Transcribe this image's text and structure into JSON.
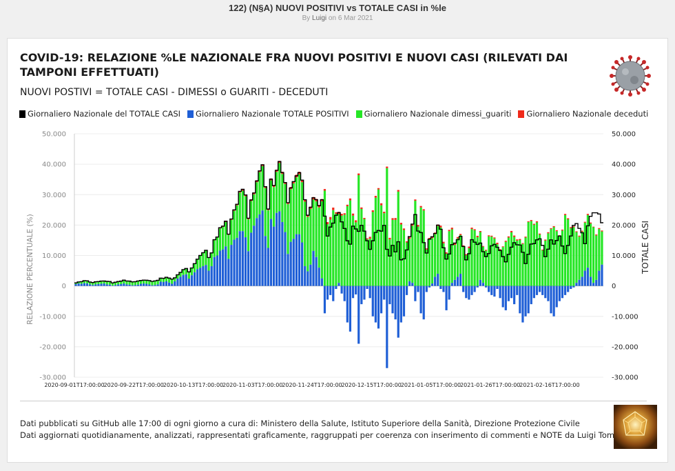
{
  "page": {
    "title": "122) (N§A) NUOVI POSITIVI vs TOTALE CASI in %le",
    "byline_prefix": "By ",
    "author": "Luigi",
    "byline_date": " on 6 Mar 2021"
  },
  "chart": {
    "title": "COVID-19: RELAZIONE %LE NAZIONALE FRA NUOVI POSITIVI E NUOVI CASI (RILEVATI DAI TAMPONI EFFETTUATI)",
    "subtitle": "NUOVI POSTIVI = TOTALE CASI - DIMESSI o GUARITI - DECEDUTI"
  },
  "legend": [
    {
      "label": "Giornaliero Nazionale del TOTALE CASI",
      "color": "#000000"
    },
    {
      "label": "Giornaliero Nazionale TOTALE POSITIVI",
      "color": "#1f5fd6"
    },
    {
      "label": "Giornaliero Nazionale dimessi_guariti",
      "color": "#26e626"
    },
    {
      "label": "Giornaliero Nazionale deceduti",
      "color": "#f02a1a"
    }
  ],
  "footer": {
    "line1": "Dati pubblicati su GitHub alle 17:00 di ogni giorno a cura di: Ministero della Salute, Istituto Superiore della Sanità, Direzione Protezione Civile",
    "line2": "Dati aggiornati quotidianamente, analizzati, rappresentati graficamente, raggruppati per coerenza con inserimento di commenti e NOTE da Luigi Tomaselli"
  },
  "chart_data": {
    "type": "bar",
    "ylabel_left": "RELAZIONE PERCENTUALE (%)",
    "ylabel_right": "TOTALE CASI",
    "ylim": [
      -30000,
      50000
    ],
    "yticks": [
      -30000,
      -20000,
      -10000,
      0,
      10000,
      20000,
      30000,
      40000,
      50000
    ],
    "ytick_labels": [
      "-30.000",
      "-20.000",
      "-10.000",
      "0",
      "10.000",
      "20.000",
      "30.000",
      "40.000",
      "50.000"
    ],
    "xtick_labels": [
      "2020-09-01T17:00:00",
      "2020-09-22T17:00:00",
      "2020-10-13T17:00:00",
      "2020-11-03T17:00:00",
      "2020-11-24T17:00:00",
      "2020-12-15T17:00:00",
      "2021-01-05T17:00:00",
      "2021-01-26T17:00:00",
      "2021-02-16T17:00:00"
    ],
    "start_date": "2020-09-01",
    "series_names": [
      "Giornaliero Nazionale del TOTALE CASI",
      "Giornaliero Nazionale TOTALE POSITIVI",
      "Giornaliero Nazionale dimessi_guariti",
      "Giornaliero Nazionale deceduti"
    ],
    "totale_casi": [
      996,
      1326,
      1397,
      1733,
      1694,
      1297,
      1108,
      1370,
      1434,
      1597,
      1616,
      1501,
      1458,
      1008,
      1229,
      1452,
      1585,
      1907,
      1638,
      1587,
      1350,
      1392,
      1640,
      1786,
      1912,
      1869,
      1766,
      1494,
      1648,
      1851,
      2548,
      2499,
      2844,
      2578,
      2257,
      2677,
      3678,
      4458,
      5372,
      5724,
      4619,
      5901,
      7332,
      8804,
      10010,
      10925,
      11705,
      9338,
      10874,
      15199,
      16079,
      19143,
      19644,
      21273,
      17012,
      21994,
      24991,
      26831,
      31084,
      31758,
      29907,
      22253,
      28244,
      30550,
      34505,
      37809,
      39811,
      32616,
      25271,
      35098,
      32961,
      37978,
      40902,
      37255,
      33979,
      27354,
      32191,
      34283,
      36176,
      37242,
      34767,
      28337,
      23232,
      25853,
      29003,
      28352,
      26323,
      28337,
      22930,
      16377,
      19350,
      20648,
      23225,
      24099,
      21052,
      18887,
      14842,
      13720,
      19644,
      18727,
      17938,
      19903,
      17992,
      14844,
      12030,
      14842,
      17572,
      18236,
      17992,
      19903,
      12030,
      9841,
      13318,
      11212,
      14522,
      8585,
      8913,
      11831,
      16202,
      20331,
      23477,
      18040,
      17533,
      14245,
      10800,
      15378,
      16146,
      17246,
      19978,
      18627,
      12545,
      8824,
      10497,
      13571,
      14078,
      15204,
      16310,
      12956,
      8562,
      10593,
      15204,
      14372,
      13633,
      14078,
      11252,
      9660,
      10630,
      13189,
      13659,
      12715,
      11641,
      9630,
      7925,
      10386,
      12724,
      14218,
      13532,
      13452,
      11068,
      7351,
      10404,
      13762,
      13908,
      15146,
      15479,
      13314,
      9630,
      12074,
      15146,
      13762,
      14931,
      16424,
      13114,
      10633,
      13314,
      16424,
      19886,
      20499,
      18916,
      17455,
      13902,
      19749,
      22865,
      24036,
      24036,
      23641,
      20765
    ],
    "totale_positivi": [
      600,
      800,
      700,
      900,
      800,
      500,
      300,
      500,
      600,
      700,
      800,
      500,
      400,
      100,
      300,
      500,
      600,
      800,
      500,
      400,
      200,
      300,
      400,
      700,
      800,
      700,
      500,
      200,
      300,
      500,
      1400,
      1300,
      1500,
      1100,
      700,
      1500,
      2400,
      3000,
      3600,
      3800,
      2400,
      3500,
      4500,
      5500,
      6000,
      6500,
      6900,
      5000,
      6500,
      9500,
      10000,
      11600,
      12000,
      13000,
      8900,
      13500,
      15200,
      15800,
      18000,
      18000,
      16000,
      11400,
      17500,
      19800,
      22300,
      23500,
      24800,
      16400,
      12500,
      22000,
      19500,
      24000,
      24500,
      21000,
      17700,
      10500,
      14500,
      15500,
      17000,
      17000,
      14300,
      6500,
      4800,
      7000,
      11500,
      9500,
      6000,
      2500,
      -9000,
      -4500,
      -3000,
      -5000,
      -1000,
      1000,
      -2500,
      -5000,
      -12000,
      -15000,
      -4000,
      -2800,
      -19000,
      -6000,
      -4500,
      -1000,
      -4000,
      -10000,
      -12000,
      -14000,
      -9000,
      -4500,
      -27000,
      -6000,
      -9000,
      -11000,
      -17000,
      -12000,
      -10000,
      -3000,
      1500,
      1000,
      -5000,
      -2000,
      -9000,
      -11000,
      -2000,
      -500,
      800,
      3000,
      4000,
      -1000,
      -2000,
      -8000,
      -4500,
      1000,
      2000,
      3000,
      4000,
      -2000,
      -4000,
      -4500,
      -3000,
      -2000,
      -500,
      2000,
      1000,
      -500,
      -2000,
      -3000,
      -3500,
      -1000,
      -4000,
      -7000,
      -8000,
      -5000,
      -4000,
      -6000,
      -3000,
      -9000,
      -12000,
      -10000,
      -9000,
      -6000,
      -4000,
      -3000,
      -2000,
      -3000,
      -4000,
      -5000,
      -9000,
      -10000,
      -7000,
      -5000,
      -4000,
      -3000,
      -2000,
      -1000,
      -500,
      1000,
      2000,
      3000,
      5000,
      6000,
      3000,
      1000,
      2000,
      5000,
      7000,
      8000,
      9000,
      10000,
      8000
    ],
    "dimessi_guariti": [
      370,
      500,
      680,
      800,
      870,
      780,
      800,
      850,
      810,
      870,
      790,
      980,
      1040,
      890,
      910,
      930,
      960,
      1080,
      1120,
      1170,
      1140,
      1080,
      1220,
      1060,
      1080,
      1150,
      1250,
      1280,
      1330,
      1340,
      1140,
      1180,
      1330,
      1460,
      1550,
      1170,
      1260,
      1450,
      1750,
      1900,
      2190,
      2400,
      2830,
      3300,
      3930,
      4330,
      4690,
      4230,
      4250,
      5500,
      5900,
      7300,
      7400,
      8000,
      7900,
      8200,
      9500,
      10700,
      12700,
      13300,
      13500,
      10500,
      10400,
      10300,
      11800,
      13900,
      14600,
      15800,
      12400,
      12700,
      13000,
      13500,
      15900,
      15800,
      15800,
      16400,
      17300,
      18200,
      18700,
      19700,
      19800,
      21200,
      17900,
      18300,
      16900,
      18300,
      19800,
      25300,
      31300,
      20300,
      21800,
      24900,
      23700,
      22600,
      23100,
      23400,
      26200,
      28100,
      23100,
      20900,
      36400,
      25300,
      22000,
      15300,
      15500,
      24300,
      29000,
      31700,
      26500,
      23900,
      38700,
      15300,
      21700,
      21700,
      31000,
      20200,
      18400,
      14300,
      14000,
      18800,
      28000,
      19500,
      25800,
      24800,
      12000,
      15300,
      14900,
      14000,
      15700,
      19200,
      14000,
      10600,
      18000,
      17600,
      11500,
      12600,
      12700,
      13000,
      10100,
      12400,
      18700,
      18300,
      16000,
      15700,
      11900,
      11600,
      16300,
      16200,
      15600,
      13700,
      11800,
      12800,
      14500,
      15900,
      17600,
      16100,
      14900,
      15100,
      13800,
      15900,
      21000,
      21300,
      20100,
      20900,
      16900,
      11700,
      14900,
      17300,
      18700,
      19300,
      18000,
      16400,
      18200,
      23300,
      21900,
      19000,
      19300,
      16700,
      14200,
      14800,
      15800,
      17300,
      17500,
      18300,
      14600,
      13700,
      10900,
      13300,
      14100,
      13900,
      13000,
      11900,
      9800,
      9800
    ],
    "deceduti": [
      26,
      13,
      17,
      20,
      24,
      12,
      8,
      15,
      10,
      11,
      14,
      12,
      9,
      6,
      12,
      15,
      13,
      14,
      12,
      9,
      7,
      14,
      13,
      15,
      16,
      18,
      10,
      9,
      14,
      16,
      24,
      23,
      17,
      18,
      16,
      24,
      31,
      43,
      47,
      83,
      40,
      73,
      89,
      91,
      127,
      136,
      151,
      128,
      154,
      217,
      221,
      251,
      297,
      353,
      299,
      329,
      375,
      425,
      446,
      445,
      341,
      353,
      580,
      623,
      635,
      550,
      569,
      504,
      475,
      625,
      693,
      722,
      694,
      731,
      630,
      545,
      732,
      655,
      853,
      827,
      686,
      672,
      684,
      785,
      822,
      821,
      823,
      754,
      541,
      672,
      846,
      839,
      528,
      761,
      599,
      485,
      491,
      649,
      680,
      674,
      553,
      489,
      352,
      342,
      649,
      553,
      600,
      450,
      659,
      485,
      520,
      504,
      575,
      616,
      530,
      548,
      479,
      363,
      483,
      615,
      412,
      543,
      472,
      406,
      347,
      489,
      590,
      543,
      476,
      603,
      509,
      435,
      421,
      541,
      551,
      454,
      389,
      310,
      310,
      536,
      451,
      342,
      470,
      344,
      219,
      272,
      332,
      308,
      333,
      499,
      279,
      209,
      341,
      385,
      469,
      460,
      391,
      322,
      274,
      307,
      247,
      353,
      317,
      339,
      301,
      237,
      336,
      349,
      278,
      347,
      304,
      251,
      307,
      374,
      339,
      343,
      297,
      244,
      318,
      347,
      274,
      380,
      326,
      185,
      307,
      312,
      317,
      293,
      240,
      188,
      315,
      339,
      332,
      307,
      275,
      194,
      242
    ]
  }
}
